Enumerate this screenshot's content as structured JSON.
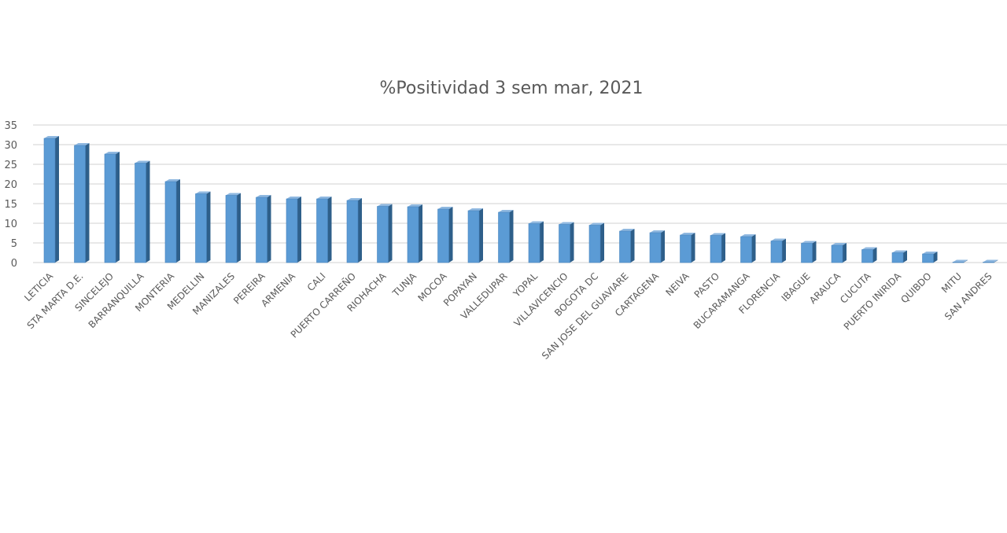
{
  "chart_data": {
    "type": "bar",
    "title": "%Positividad 3 sem mar, 2021",
    "xlabel": "",
    "ylabel": "",
    "ylim": [
      0,
      35
    ],
    "yticks": [
      0,
      5,
      10,
      15,
      20,
      25,
      30,
      35
    ],
    "grid": true,
    "legend": "none",
    "bar_color": "#5B9BD5",
    "bar_dark_color": "#2E5F8A",
    "bar_top_color": "#8FB8E0",
    "categories": [
      "LETICIA",
      "STA MARTA D.E.",
      "SINCELEJO",
      "BARRANQUILLA",
      "MONTERIA",
      "MEDELLIN",
      "MANIZALES",
      "PEREIRA",
      "ARMENIA",
      "CALI",
      "PUERTO CARREÑO",
      "RIOHACHA",
      "TUNJA",
      "MOCOA",
      "POPAYAN",
      "VALLEDUPAR",
      "YOPAL",
      "VILLAVICENCIO",
      "BOGOTA DC",
      "SAN JOSE DEL GUAVIARE",
      "CARTAGENA",
      "NEIVA",
      "PASTO",
      "BUCARAMANGA",
      "FLORENCIA",
      "IBAGUE",
      "ARAUCA",
      "CUCUTA",
      "PUERTO INIRIDA",
      "QUIBDO",
      "MITU",
      "SAN ANDRES"
    ],
    "values": [
      31.6,
      29.8,
      27.6,
      25.3,
      20.6,
      17.5,
      17.1,
      16.6,
      16.2,
      16.2,
      15.8,
      14.3,
      14.2,
      13.6,
      13.2,
      12.8,
      9.9,
      9.7,
      9.5,
      8.0,
      7.6,
      7.0,
      6.9,
      6.6,
      5.5,
      4.9,
      4.4,
      3.3,
      2.5,
      2.2,
      0.1,
      0.1
    ]
  }
}
